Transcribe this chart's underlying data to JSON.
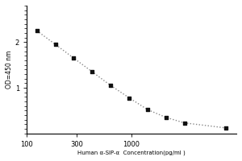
{
  "x_data": [
    125,
    188,
    281,
    422,
    633,
    950,
    1425,
    2138,
    3206,
    8000
  ],
  "y_data": [
    2.25,
    1.95,
    1.65,
    1.35,
    1.05,
    0.78,
    0.52,
    0.35,
    0.23,
    0.12
  ],
  "xlabel": "Human α-SIP-α  Concentration(pg/ml )",
  "ylabel": "OD=450 nm",
  "xlim_log": [
    100,
    10000
  ],
  "ylim": [
    0,
    2.8
  ],
  "yticks_major": [
    1.0,
    2.0
  ],
  "ytick_minor_step": 0.1,
  "xticks": [
    100,
    300,
    1000
  ],
  "xtick_labels": [
    "100",
    "300",
    "1000"
  ],
  "background_color": "#ffffff",
  "line_color": "#888888",
  "marker_color": "#111111",
  "marker_size": 10
}
